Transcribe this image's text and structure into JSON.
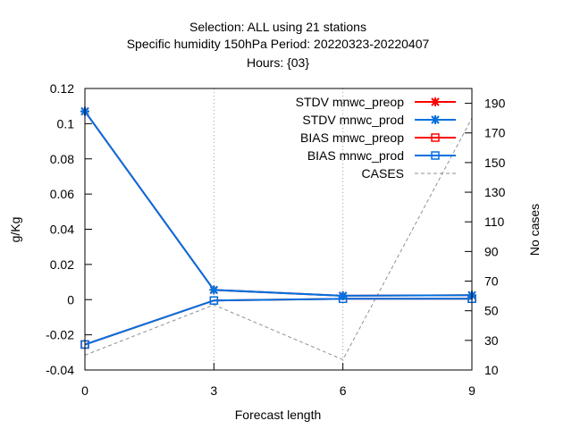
{
  "chart_data": {
    "type": "line",
    "title_lines": [
      "Selection: ALL using    21 stations",
      "Specific humidity 150hPa   Period: 20220323-20220407",
      "Hours: {03}"
    ],
    "xlabel": "Forecast length",
    "ylabel": "g/Kg",
    "y2label": "No cases",
    "x": [
      0,
      3,
      6,
      9
    ],
    "xlim": [
      0,
      9
    ],
    "ylim": [
      -0.04,
      0.12
    ],
    "y2lim": [
      10,
      200
    ],
    "x_ticks": [
      0,
      3,
      6,
      9
    ],
    "y_ticks": [
      -0.04,
      -0.02,
      0,
      0.02,
      0.04,
      0.06,
      0.08,
      0.1,
      0.12
    ],
    "y2_ticks": [
      10,
      30,
      50,
      70,
      90,
      110,
      130,
      150,
      170,
      190
    ],
    "grid": "x-only dotted",
    "legend_position": "top-right",
    "series": [
      {
        "name": "STDV mnwc_preop",
        "axis": "y",
        "values": [
          0.107,
          0.0055,
          0.0022,
          0.0025
        ],
        "color": "#ff0000",
        "marker": "star"
      },
      {
        "name": "STDV mnwc_prod",
        "axis": "y",
        "values": [
          0.107,
          0.0055,
          0.0022,
          0.0025
        ],
        "color": "#0070e0",
        "marker": "star"
      },
      {
        "name": "BIAS mnwc_preop",
        "axis": "y",
        "values": [
          -0.0255,
          -0.0005,
          0.0005,
          0.0005
        ],
        "color": "#ff0000",
        "marker": "square"
      },
      {
        "name": "BIAS mnwc_prod",
        "axis": "y",
        "values": [
          -0.0255,
          -0.0005,
          0.0005,
          0.0005
        ],
        "color": "#0070e0",
        "marker": "square"
      },
      {
        "name": "CASES",
        "axis": "y2",
        "values": [
          20,
          54,
          17,
          180
        ],
        "color": "#909090",
        "marker": "none",
        "dash": true
      }
    ]
  }
}
